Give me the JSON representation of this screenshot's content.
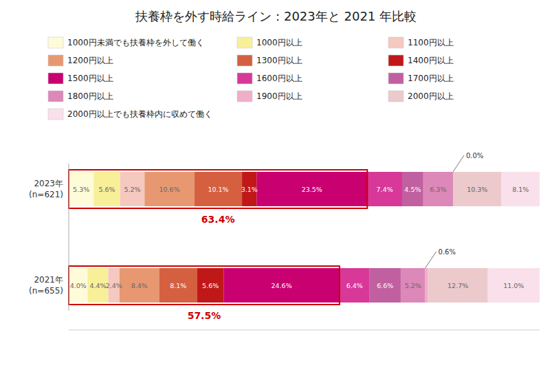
{
  "chart_data": {
    "type": "bar",
    "orientation": "horizontal",
    "stacked": true,
    "title": "扶養枠を外す時給ライン：2023年と 2021 年比較",
    "categories": [
      "2023年\n(n=621)",
      "2021年\n(n=655)"
    ],
    "series": [
      {
        "name": "1000円未満でも扶養枠を外して働く",
        "color": "#FEFCD8",
        "values": [
          5.3,
          4.0
        ],
        "value_labels": [
          "5.3%",
          "4.0%"
        ]
      },
      {
        "name": "1000円以上",
        "color": "#F8F098",
        "values": [
          5.6,
          4.4
        ],
        "value_labels": [
          "5.6%",
          "4.4%"
        ]
      },
      {
        "name": "1100円以上",
        "color": "#F5C8C0",
        "values": [
          5.2,
          2.4
        ],
        "value_labels": [
          "5.2%",
          "2.4%"
        ]
      },
      {
        "name": "1200円以上",
        "color": "#E89870",
        "values": [
          10.6,
          8.4
        ],
        "value_labels": [
          "10.6%",
          "8.4%"
        ]
      },
      {
        "name": "1300円以上",
        "color": "#D46040",
        "values": [
          10.1,
          8.1
        ],
        "value_labels": [
          "10.1%",
          "8.1%"
        ]
      },
      {
        "name": "1400円以上",
        "color": "#C01818",
        "values": [
          3.1,
          5.6
        ],
        "value_labels": [
          "3.1%",
          "5.6%"
        ]
      },
      {
        "name": "1500円以上",
        "color": "#C80070",
        "values": [
          23.5,
          24.6
        ],
        "value_labels": [
          "23.5%",
          "24.6%"
        ]
      },
      {
        "name": "1600円以上",
        "color": "#D83898",
        "values": [
          7.4,
          6.4
        ],
        "value_labels": [
          "7.4%",
          "6.4%"
        ]
      },
      {
        "name": "1700円以上",
        "color": "#C060A0",
        "values": [
          4.5,
          6.6
        ],
        "value_labels": [
          "4.5%",
          "6.6%"
        ]
      },
      {
        "name": "1800円以上",
        "color": "#DC88B8",
        "values": [
          6.3,
          5.2
        ],
        "value_labels": [
          "6.3%",
          "5.2%"
        ]
      },
      {
        "name": "1900円以上",
        "color": "#F0AEC8",
        "values": [
          0.0,
          0.6
        ],
        "value_labels": [
          "0.0%",
          "0.6%"
        ]
      },
      {
        "name": "2000円以上",
        "color": "#ECCACC",
        "values": [
          10.3,
          12.7
        ],
        "value_labels": [
          "10.3%",
          "12.7%"
        ]
      },
      {
        "name": "2000円以上でも扶養枠内に収めて働く",
        "color": "#F9E0EA",
        "values": [
          8.1,
          11.0
        ],
        "value_labels": [
          "8.1%",
          "11.0%"
        ]
      }
    ],
    "annotations": [
      {
        "text": "63.4%",
        "value": 63.4,
        "color": "#CC0000"
      },
      {
        "text": "57.5%",
        "value": 57.5,
        "color": "#CC0000"
      }
    ],
    "data_labels": true,
    "legend": "top",
    "grid": false,
    "tick_labels": false,
    "xlim": [
      0,
      100
    ],
    "xticks": [
      0
    ]
  }
}
